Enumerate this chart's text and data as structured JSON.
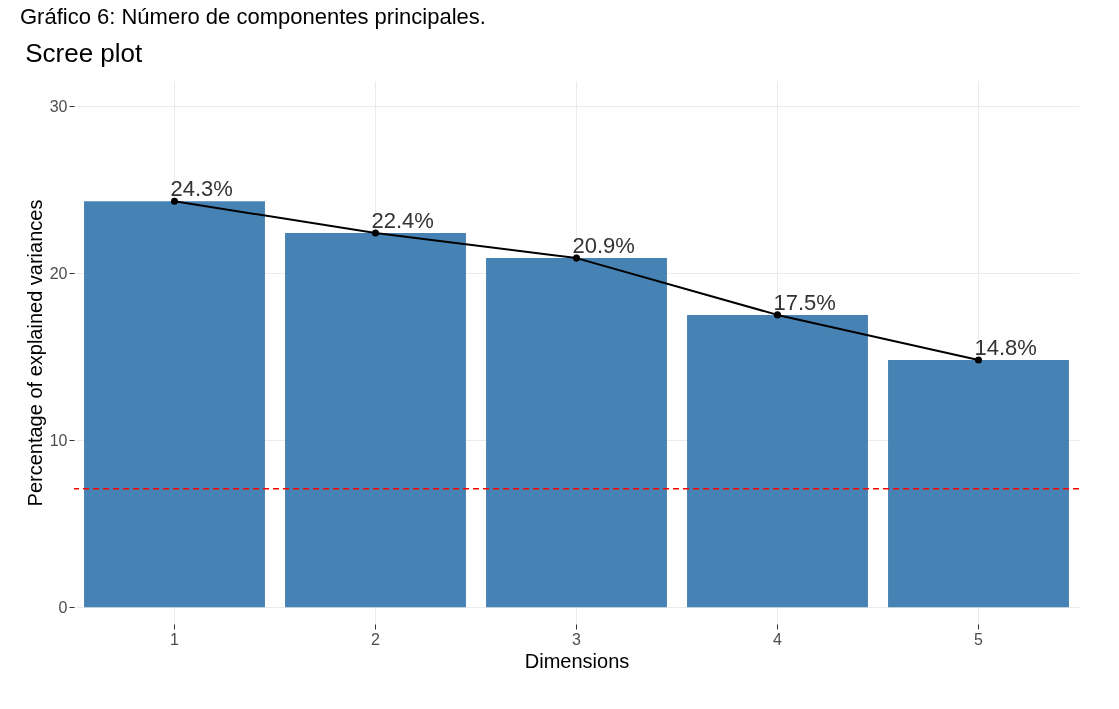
{
  "chart_data": {
    "type": "bar",
    "title": "Scree plot",
    "xlabel": "Dimensions",
    "ylabel": "Percentage of explained variances",
    "annotations": [
      "Gráfico 6: Número de componentes principales."
    ],
    "categories": [
      "1",
      "2",
      "3",
      "4",
      "5"
    ],
    "series": [
      {
        "color": "#4682b4",
        "values": [
          24.3,
          22.4,
          20.9,
          17.5,
          14.8
        ],
        "value_labels": [
          "24.3%",
          "22.4%",
          "20.9%",
          "17.5%",
          "14.8%"
        ]
      },
      {
        "type": "line",
        "color": "#000000",
        "marker": "circle",
        "values": [
          24.3,
          22.4,
          20.9,
          17.5,
          14.8
        ]
      }
    ],
    "ref_lines": [
      {
        "axis": "y",
        "value": 7.1,
        "color": "#ff0000",
        "line_style": "dashed"
      }
    ],
    "ylim": [
      -1,
      31.5
    ],
    "yticks": [
      0,
      10,
      20,
      30
    ],
    "grid": true
  }
}
